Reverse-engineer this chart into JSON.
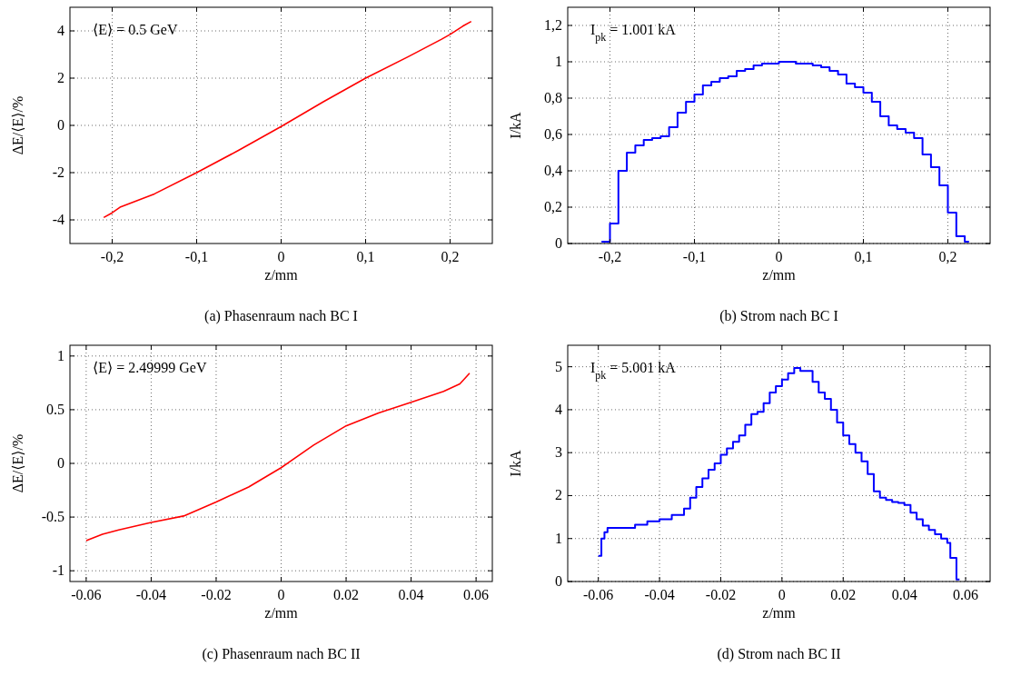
{
  "chart_data": [
    {
      "type": "line",
      "title": "(a) Phasenraum nach BC I",
      "xlabel": "z/mm",
      "ylabel": "ΔE/⟨E⟩/%",
      "annotations": [
        "⟨E⟩ = 0.5 GeV"
      ],
      "grid": true,
      "xlim": [
        -0.25,
        0.25
      ],
      "ylim": [
        -5,
        5
      ],
      "xticks": [
        {
          "value": -0.2,
          "label": "-0,2"
        },
        {
          "value": -0.1,
          "label": "-0,1"
        },
        0,
        {
          "value": 0.1,
          "label": "0,1"
        },
        {
          "value": 0.2,
          "label": "0,2"
        }
      ],
      "yticks": [
        -4,
        -2,
        0,
        2,
        4
      ],
      "x": [
        -0.21,
        -0.2,
        -0.19,
        -0.15,
        -0.1,
        -0.05,
        0,
        0.05,
        0.1,
        0.15,
        0.19,
        0.2,
        0.215,
        0.225
      ],
      "series": [
        {
          "color": "#ff0000",
          "values": [
            -3.9,
            -3.7,
            -3.45,
            -2.9,
            -2.0,
            -1.05,
            -0.05,
            1.0,
            2.0,
            2.9,
            3.65,
            3.85,
            4.2,
            4.4
          ]
        }
      ]
    },
    {
      "type": "step",
      "title": "(b) Strom nach BC I",
      "xlabel": "z/mm",
      "ylabel": "I/kA",
      "annotations": [
        "I$_{pk}$ = 1.001 kA"
      ],
      "grid": true,
      "xlim": [
        -0.25,
        0.25
      ],
      "ylim": [
        0,
        1.3
      ],
      "xticks": [
        {
          "value": -0.2,
          "label": "-0,2"
        },
        {
          "value": -0.1,
          "label": "-0,1"
        },
        0,
        {
          "value": 0.1,
          "label": "0,1"
        },
        {
          "value": 0.2,
          "label": "0,2"
        }
      ],
      "yticks": [
        0,
        {
          "value": 0.2,
          "label": "0,2"
        },
        {
          "value": 0.4,
          "label": "0,4"
        },
        {
          "value": 0.6,
          "label": "0,6"
        },
        {
          "value": 0.8,
          "label": "0,8"
        },
        1,
        {
          "value": 1.2,
          "label": "1,2"
        }
      ],
      "x": [
        -0.21,
        -0.2,
        -0.19,
        -0.18,
        -0.17,
        -0.16,
        -0.15,
        -0.14,
        -0.13,
        -0.12,
        -0.11,
        -0.1,
        -0.09,
        -0.08,
        -0.07,
        -0.06,
        -0.05,
        -0.04,
        -0.03,
        -0.02,
        -0.01,
        0,
        0.01,
        0.02,
        0.03,
        0.04,
        0.05,
        0.06,
        0.07,
        0.08,
        0.09,
        0.1,
        0.11,
        0.12,
        0.13,
        0.14,
        0.15,
        0.16,
        0.17,
        0.18,
        0.19,
        0.2,
        0.21,
        0.22,
        0.225
      ],
      "series": [
        {
          "color": "#0000ff",
          "values": [
            0.01,
            0.11,
            0.4,
            0.5,
            0.54,
            0.57,
            0.58,
            0.59,
            0.64,
            0.72,
            0.78,
            0.82,
            0.87,
            0.89,
            0.91,
            0.92,
            0.95,
            0.96,
            0.98,
            0.99,
            0.99,
            1.0,
            1.0,
            0.99,
            0.99,
            0.98,
            0.97,
            0.95,
            0.93,
            0.88,
            0.86,
            0.83,
            0.78,
            0.7,
            0.65,
            0.63,
            0.61,
            0.58,
            0.49,
            0.42,
            0.32,
            0.17,
            0.04,
            0.01,
            0.01
          ]
        }
      ]
    },
    {
      "type": "line",
      "title": "(c) Phasenraum nach BC II",
      "xlabel": "z/mm",
      "ylabel": "ΔE/⟨E⟩/%",
      "annotations": [
        "⟨E⟩ = 2.49999 GeV"
      ],
      "grid": true,
      "xlim": [
        -0.065,
        0.065
      ],
      "ylim": [
        -1.1,
        1.1
      ],
      "xticks": [
        -0.06,
        -0.04,
        -0.02,
        0,
        0.02,
        0.04,
        0.06
      ],
      "yticks": [
        -1,
        -0.5,
        0,
        0.5,
        1
      ],
      "x": [
        -0.06,
        -0.055,
        -0.05,
        -0.04,
        -0.03,
        -0.02,
        -0.01,
        0,
        0.01,
        0.02,
        0.03,
        0.04,
        0.05,
        0.055,
        0.058
      ],
      "series": [
        {
          "color": "#ff0000",
          "values": [
            -0.72,
            -0.66,
            -0.62,
            -0.55,
            -0.49,
            -0.36,
            -0.22,
            -0.04,
            0.17,
            0.35,
            0.47,
            0.57,
            0.67,
            0.74,
            0.84
          ]
        }
      ]
    },
    {
      "type": "step",
      "title": "(d) Strom nach BC II",
      "xlabel": "z/mm",
      "ylabel": "I/kA",
      "annotations": [
        "I$_{pk}$ = 5.001 kA"
      ],
      "grid": true,
      "xlim": [
        -0.07,
        0.068
      ],
      "ylim": [
        0,
        5.5
      ],
      "xticks": [
        -0.06,
        -0.04,
        -0.02,
        0,
        0.02,
        0.04,
        0.06
      ],
      "yticks": [
        0,
        1,
        2,
        3,
        4,
        5
      ],
      "x": [
        -0.06,
        -0.059,
        -0.058,
        -0.057,
        -0.052,
        -0.048,
        -0.044,
        -0.04,
        -0.036,
        -0.032,
        -0.03,
        -0.028,
        -0.026,
        -0.024,
        -0.022,
        -0.02,
        -0.018,
        -0.016,
        -0.014,
        -0.012,
        -0.01,
        -0.008,
        -0.006,
        -0.004,
        -0.002,
        0,
        0.002,
        0.004,
        0.006,
        0.008,
        0.01,
        0.012,
        0.014,
        0.016,
        0.018,
        0.02,
        0.022,
        0.024,
        0.026,
        0.028,
        0.03,
        0.032,
        0.034,
        0.036,
        0.038,
        0.04,
        0.042,
        0.044,
        0.046,
        0.048,
        0.05,
        0.052,
        0.054,
        0.055,
        0.057,
        0.058
      ],
      "series": [
        {
          "color": "#0000ff",
          "values": [
            0.6,
            1.0,
            1.15,
            1.25,
            1.25,
            1.32,
            1.4,
            1.45,
            1.55,
            1.7,
            1.95,
            2.2,
            2.4,
            2.6,
            2.75,
            2.95,
            3.1,
            3.25,
            3.4,
            3.65,
            3.9,
            3.95,
            4.15,
            4.4,
            4.55,
            4.7,
            4.85,
            4.97,
            4.9,
            4.9,
            4.65,
            4.4,
            4.25,
            4.0,
            3.7,
            3.4,
            3.2,
            3.0,
            2.8,
            2.5,
            2.1,
            1.95,
            1.9,
            1.85,
            1.83,
            1.78,
            1.6,
            1.45,
            1.3,
            1.2,
            1.1,
            1.0,
            0.9,
            0.55,
            0.05,
            0.05
          ]
        }
      ]
    }
  ]
}
